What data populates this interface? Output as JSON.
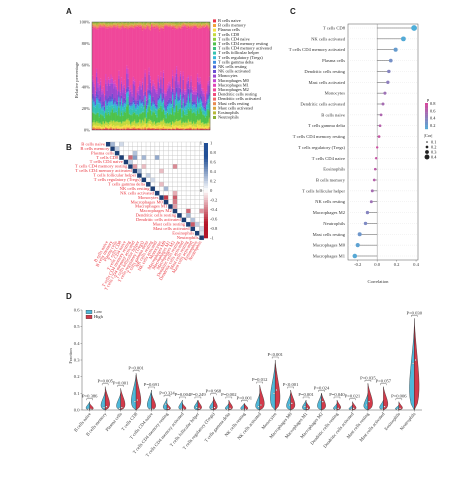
{
  "panels": {
    "a": "A",
    "b": "B",
    "c": "C",
    "d": "D"
  },
  "chart_data": [
    {
      "panel": "A",
      "type": "area",
      "ylabel": "Relative percentage",
      "yticks": [
        "0%",
        "20%",
        "40%",
        "60%",
        "80%",
        "100%"
      ],
      "legend": [
        {
          "name": "B cells naive",
          "color": "#e8334a"
        },
        {
          "name": "B cells memory",
          "color": "#f2a33a"
        },
        {
          "name": "Plasma cells",
          "color": "#f5e044"
        },
        {
          "name": "T cells CD8",
          "color": "#c4d93d"
        },
        {
          "name": "T cells CD4 naive",
          "color": "#8ccf3f"
        },
        {
          "name": "T cells CD4 memory resting",
          "color": "#4ec24a"
        },
        {
          "name": "T cells CD4 memory activated",
          "color": "#3dbf7e"
        },
        {
          "name": "T cells follicular helper",
          "color": "#34c3b0"
        },
        {
          "name": "T cells regulatory (Tregs)",
          "color": "#36b7d8"
        },
        {
          "name": "T cells gamma delta",
          "color": "#3f8fe0"
        },
        {
          "name": "NK cells resting",
          "color": "#4a63d8"
        },
        {
          "name": "NK cells activated",
          "color": "#6a4fd1"
        },
        {
          "name": "Monocytes",
          "color": "#9a48d0"
        },
        {
          "name": "Macrophages M0",
          "color": "#c347cf"
        },
        {
          "name": "Macrophages M1",
          "color": "#e046b8"
        },
        {
          "name": "Macrophages M2",
          "color": "#f0479a"
        },
        {
          "name": "Dendritic cells resting",
          "color": "#f04c7c"
        },
        {
          "name": "Dendritic cells activated",
          "color": "#f26a6a"
        },
        {
          "name": "Mast cells resting",
          "color": "#e88a50"
        },
        {
          "name": "Mast cells activated",
          "color": "#d9a641"
        },
        {
          "name": "Eosinophils",
          "color": "#b8b83a"
        },
        {
          "name": "Neutrophils",
          "color": "#8ab03a"
        }
      ],
      "mean_fractions": [
        0.01,
        0.01,
        0.02,
        0.03,
        0.01,
        0.08,
        0.01,
        0.05,
        0.03,
        0.01,
        0.01,
        0.03,
        0.09,
        0.03,
        0.03,
        0.53,
        0.01,
        0.01,
        0.01,
        0.01,
        0.01,
        0.01
      ]
    },
    {
      "panel": "B",
      "type": "heatmap",
      "labels": [
        "B cells naive",
        "B cells memory",
        "Plasma cells",
        "T cells CD8",
        "T cells CD4 naive",
        "T cells CD4 memory resting",
        "T cells CD4 memory activated",
        "T cells follicular helper",
        "T cells regulatory (Tregs)",
        "T cells gamma delta",
        "NK cells resting",
        "NK cells activated",
        "Monocytes",
        "Macrophages M0",
        "Macrophages M1",
        "Macrophages M2",
        "Dendritic cells resting",
        "Dendritic cells activated",
        "Mast cells resting",
        "Mast cells activated",
        "Eosinophils",
        "Neutrophils"
      ],
      "colorbar_ticks": [
        "1",
        "0.8",
        "0.6",
        "0.4",
        "0.2",
        "0",
        "-0.2",
        "-0.4",
        "-0.6",
        "-0.8",
        "-1"
      ],
      "colorbar_ticks_side": [
        "1",
        "0",
        "-1"
      ],
      "cells": [
        {
          "r": 0,
          "c": 1,
          "v": 0.3
        },
        {
          "r": 0,
          "c": 3,
          "v": 0.15
        },
        {
          "r": 1,
          "c": 2,
          "v": 0.2
        },
        {
          "r": 2,
          "c": 6,
          "v": 0.25
        },
        {
          "r": 3,
          "c": 5,
          "v": -0.45
        },
        {
          "r": 3,
          "c": 6,
          "v": 0.4
        },
        {
          "r": 3,
          "c": 8,
          "v": 0.3
        },
        {
          "r": 3,
          "c": 11,
          "v": 0.35
        },
        {
          "r": 4,
          "c": 5,
          "v": 0.2
        },
        {
          "r": 5,
          "c": 6,
          "v": -0.3
        },
        {
          "r": 5,
          "c": 8,
          "v": -0.2
        },
        {
          "r": 5,
          "c": 15,
          "v": -0.35
        },
        {
          "r": 6,
          "c": 7,
          "v": 0.3
        },
        {
          "r": 6,
          "c": 12,
          "v": -0.2
        },
        {
          "r": 7,
          "c": 9,
          "v": 0.2
        },
        {
          "r": 8,
          "c": 10,
          "v": 0.15
        },
        {
          "r": 9,
          "c": 12,
          "v": -0.2
        },
        {
          "r": 10,
          "c": 13,
          "v": 0.3
        },
        {
          "r": 11,
          "c": 15,
          "v": -0.25
        },
        {
          "r": 12,
          "c": 13,
          "v": -0.6
        },
        {
          "r": 12,
          "c": 15,
          "v": -0.5
        },
        {
          "r": 13,
          "c": 15,
          "v": -0.4
        },
        {
          "r": 14,
          "c": 15,
          "v": -0.3
        },
        {
          "r": 15,
          "c": 18,
          "v": -0.45
        },
        {
          "r": 15,
          "c": 21,
          "v": -0.3
        },
        {
          "r": 16,
          "c": 18,
          "v": 0.3
        },
        {
          "r": 17,
          "c": 19,
          "v": 0.25
        },
        {
          "r": 18,
          "c": 19,
          "v": -0.5
        },
        {
          "r": 18,
          "c": 20,
          "v": 0.2
        },
        {
          "r": 19,
          "c": 21,
          "v": 0.15
        },
        {
          "r": 20,
          "c": 21,
          "v": 0.1
        }
      ]
    },
    {
      "panel": "C",
      "type": "scatter",
      "xlabel": "Correlation",
      "xlim": [
        -0.3,
        0.42
      ],
      "xticks": [
        -0.2,
        0.0,
        0.2,
        0.4
      ],
      "categories": [
        "T cells CD8",
        "NK cells activated",
        "T cells CD4 memory activated",
        "Plasma cells",
        "Dendritic cells resting",
        "Mast cells activated",
        "Monocytes",
        "Dendritic cells activated",
        "B cells naive",
        "T cells gamma delta",
        "T cells CD4 memory resting",
        "T cells regulatory (Tregs)",
        "T cells CD4 naive",
        "Eosinophils",
        "B cells memory",
        "T cells follicular helper",
        "NK cells resting",
        "Macrophages M2",
        "Neutrophils",
        "Mast cells resting",
        "Macrophages M0",
        "Macrophages M1"
      ],
      "values": [
        0.38,
        0.27,
        0.19,
        0.14,
        0.12,
        0.11,
        0.08,
        0.06,
        0.04,
        0.03,
        0.02,
        0.0,
        -0.01,
        -0.02,
        -0.03,
        -0.05,
        -0.06,
        -0.1,
        -0.12,
        -0.18,
        -0.2,
        -0.23
      ],
      "pvalues": [
        0.05,
        0.08,
        0.2,
        0.3,
        0.4,
        0.45,
        0.55,
        0.6,
        0.65,
        0.7,
        0.8,
        0.85,
        0.8,
        0.75,
        0.7,
        0.6,
        0.55,
        0.4,
        0.35,
        0.25,
        0.15,
        0.1
      ],
      "legend_p_title": "p",
      "legend_p_ticks": [
        "0.8",
        "0.6",
        "0.4",
        "0.2"
      ],
      "legend_cor_title": "|Cor|",
      "legend_cor_ticks": [
        "0.1",
        "0.2",
        "0.3",
        "0.4"
      ]
    },
    {
      "panel": "D",
      "type": "violin",
      "ylabel": "Fraction",
      "ylim": [
        0.0,
        0.6
      ],
      "yticks": [
        0.0,
        0.1,
        0.2,
        0.3,
        0.4,
        0.5,
        0.6
      ],
      "legend": [
        {
          "name": "Low",
          "color": "#4fb8d9"
        },
        {
          "name": "High",
          "color": "#d23a4a"
        }
      ],
      "categories": [
        "B cells naive",
        "B cells memory",
        "Plasma cells",
        "T cells CD8",
        "T cells CD4 naive",
        "T cells CD4 memory resting",
        "T cells CD4 memory activated",
        "T cells follicular helper",
        "T cells regulatory (Tregs)",
        "T cells gamma delta",
        "NK cells resting",
        "NK cells activated",
        "Monocytes",
        "Macrophages M0",
        "Macrophages M1",
        "Macrophages M2",
        "Dendritic cells resting",
        "Dendritic cells activated",
        "Mast cells resting",
        "Mast cells activated",
        "Eosinophils",
        "Neutrophils"
      ],
      "pvalues": [
        "P=0.386",
        "P=0.005",
        "P=0.001",
        "P<0.001",
        "P=0.691",
        "P=0.324",
        "P=0.004",
        "P=0.249",
        "P=0.968",
        "P=0.002",
        "P=0.001",
        "P=0.012",
        "P<0.001",
        "P<0.001",
        "P=0.001",
        "P=0.024",
        "P=0.040",
        "P=0.021",
        "P=0.035",
        "P=0.057",
        "P=0.006",
        "P=0.030"
      ],
      "max_low": [
        0.05,
        0.11,
        0.1,
        0.21,
        0.12,
        0.07,
        0.06,
        0.06,
        0.06,
        0.04,
        0.04,
        0.1,
        0.28,
        0.1,
        0.06,
        0.1,
        0.04,
        0.03,
        0.1,
        0.06,
        0.03,
        0.5
      ],
      "max_high": [
        0.04,
        0.14,
        0.13,
        0.22,
        0.1,
        0.04,
        0.04,
        0.06,
        0.08,
        0.06,
        0.04,
        0.15,
        0.3,
        0.12,
        0.05,
        0.1,
        0.06,
        0.05,
        0.16,
        0.14,
        0.05,
        0.55
      ],
      "median_low": [
        0.005,
        0.015,
        0.01,
        0.05,
        0.005,
        0.035,
        0.005,
        0.015,
        0.01,
        0.005,
        0.005,
        0.02,
        0.1,
        0.03,
        0.02,
        0.06,
        0.005,
        0.005,
        0.03,
        0.005,
        0.005,
        0.28
      ],
      "median_high": [
        0.005,
        0.02,
        0.015,
        0.06,
        0.005,
        0.01,
        0.005,
        0.01,
        0.015,
        0.01,
        0.005,
        0.03,
        0.12,
        0.04,
        0.01,
        0.05,
        0.01,
        0.01,
        0.05,
        0.02,
        0.01,
        0.3
      ]
    }
  ]
}
